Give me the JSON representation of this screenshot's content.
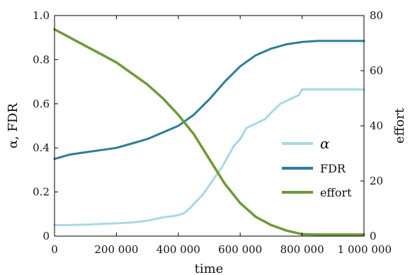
{
  "chart_data": {
    "type": "line",
    "xlabel": "time",
    "ylabel_left": "α, FDR",
    "ylabel_right": "effort",
    "xlim": [
      0,
      1000000
    ],
    "ylim_left": [
      0,
      1
    ],
    "ylim_right": [
      0,
      80
    ],
    "grid": false,
    "legend_position": "center-right",
    "x_ticks": [
      0,
      200000,
      400000,
      600000,
      800000,
      1000000
    ],
    "x_tick_labels": [
      "0",
      "200 000",
      "400 000",
      "600 000",
      "800 000",
      "1 000 000"
    ],
    "y_left_ticks": [
      0,
      0.2,
      0.4,
      0.6,
      0.8,
      1.0
    ],
    "y_left_tick_labels": [
      "0",
      "0.2",
      "0.4",
      "0.6",
      "0.8",
      "1.0"
    ],
    "y_right_ticks": [
      0,
      20,
      40,
      60,
      80
    ],
    "y_right_tick_labels": [
      "0",
      "20",
      "40",
      "60",
      "80"
    ],
    "series": [
      {
        "name": "α",
        "axis": "left",
        "color": "#a8d8e8",
        "x": [
          0,
          50000,
          100000,
          150000,
          200000,
          250000,
          300000,
          350000,
          380000,
          400000,
          420000,
          440000,
          460000,
          480000,
          500000,
          520000,
          540000,
          560000,
          580000,
          600000,
          620000,
          650000,
          680000,
          700000,
          730000,
          760000,
          790000,
          800000,
          850000,
          900000,
          950000,
          1000000
        ],
        "values": [
          0.05,
          0.05,
          0.052,
          0.055,
          0.058,
          0.062,
          0.07,
          0.085,
          0.09,
          0.095,
          0.105,
          0.13,
          0.16,
          0.19,
          0.23,
          0.27,
          0.31,
          0.36,
          0.41,
          0.44,
          0.49,
          0.51,
          0.53,
          0.56,
          0.6,
          0.62,
          0.64,
          0.665,
          0.665,
          0.665,
          0.665,
          0.665
        ]
      },
      {
        "name": "FDR",
        "axis": "left",
        "color": "#2e7d9a",
        "x": [
          0,
          50000,
          100000,
          150000,
          200000,
          250000,
          300000,
          350000,
          400000,
          450000,
          500000,
          550000,
          600000,
          650000,
          700000,
          750000,
          800000,
          850000,
          900000,
          950000,
          1000000
        ],
        "values": [
          0.35,
          0.37,
          0.38,
          0.39,
          0.4,
          0.42,
          0.44,
          0.47,
          0.5,
          0.55,
          0.62,
          0.7,
          0.77,
          0.82,
          0.85,
          0.87,
          0.88,
          0.885,
          0.885,
          0.885,
          0.885
        ]
      },
      {
        "name": "effort",
        "axis": "right",
        "color": "#6f9a3b",
        "x": [
          0,
          50000,
          100000,
          150000,
          200000,
          250000,
          300000,
          350000,
          400000,
          450000,
          500000,
          550000,
          600000,
          650000,
          700000,
          750000,
          800000,
          850000,
          900000,
          950000,
          1000000
        ],
        "values": [
          75,
          72,
          69,
          66,
          63,
          59,
          55,
          50,
          44,
          37,
          28,
          19,
          12,
          7,
          4,
          2,
          0.7,
          0.6,
          0.6,
          0.6,
          0.6
        ]
      }
    ]
  }
}
